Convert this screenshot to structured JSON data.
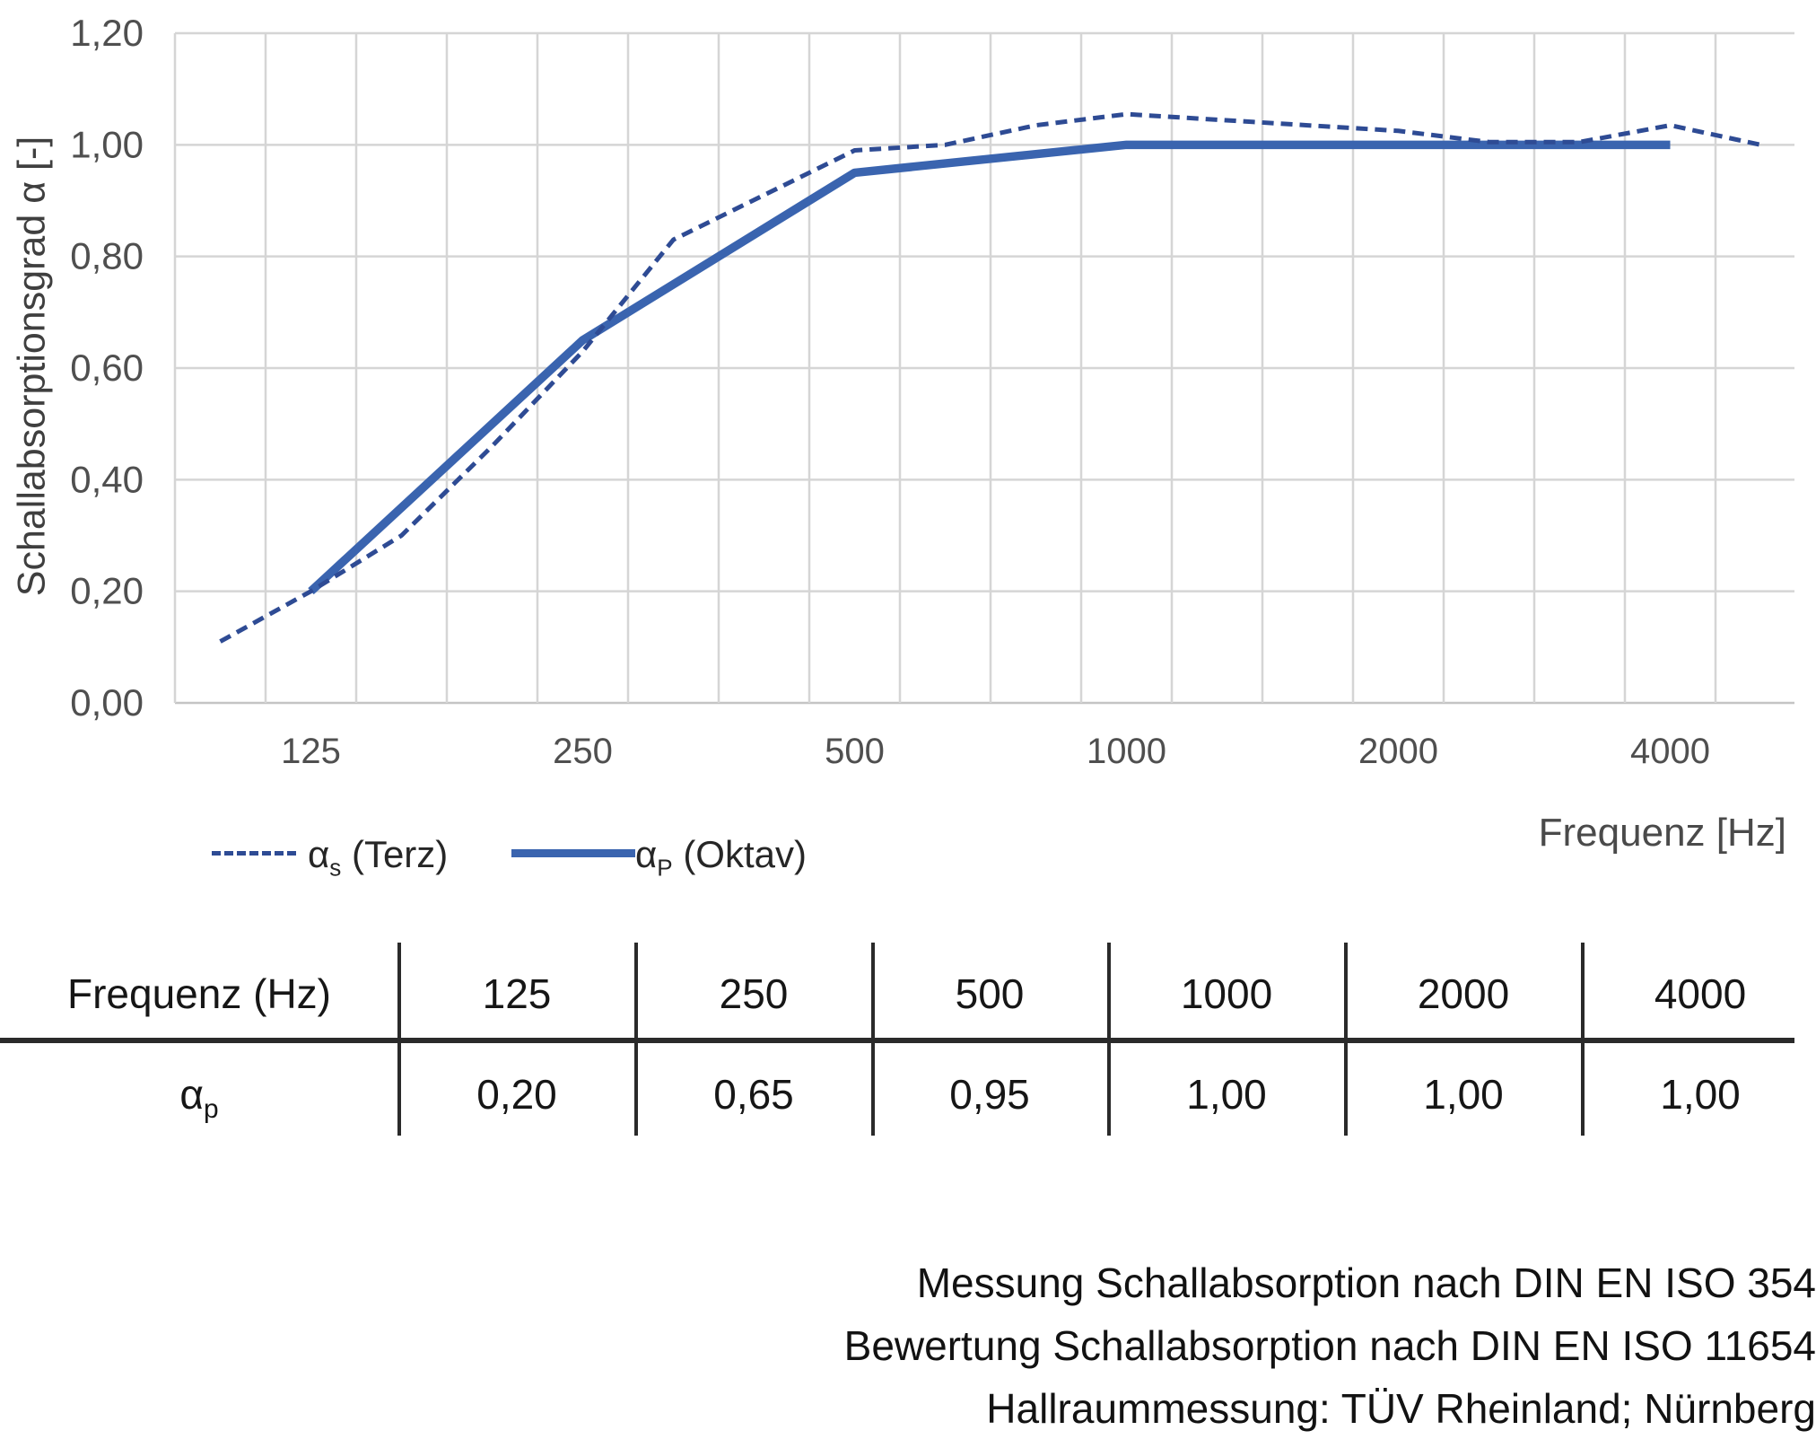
{
  "chart": {
    "y_axis": {
      "title": "Schallabsorptionsgrad α [-]",
      "tick_labels": [
        "1,20",
        "1,00",
        "0,80",
        "0,60",
        "0,40",
        "0,20",
        "0,00"
      ]
    },
    "x_axis": {
      "title": "Frequenz [Hz]",
      "tick_labels": [
        "125",
        "250",
        "500",
        "1000",
        "2000",
        "4000"
      ]
    },
    "legend": {
      "terz": {
        "symbol": "dashed-line",
        "base": "α",
        "sub": "s",
        "rest": " (Terz)"
      },
      "oktav": {
        "symbol": "solid-line",
        "base": "α",
        "sub": "P",
        "rest": " (Oktav)"
      }
    },
    "colors": {
      "terz_line": "#2E4B94",
      "oktav_line": "#3A64AF",
      "gridline": "#D5D5D5",
      "axis_line": "#C4C4C4",
      "tick_text": "#4F4F4F",
      "title_text": "#3F3F3F"
    }
  },
  "chart_data": {
    "type": "line",
    "xlabel": "Frequenz [Hz]",
    "ylabel": "Schallabsorptionsgrad α [-]",
    "x_scale": "third-octave-bands",
    "categories": [
      100,
      125,
      160,
      200,
      250,
      315,
      400,
      500,
      630,
      800,
      1000,
      1250,
      1600,
      2000,
      2500,
      3150,
      4000,
      5000
    ],
    "ylim": [
      0,
      1.2
    ],
    "y_tick_step": 0.2,
    "grid": true,
    "legend_position": "bottom-left",
    "series": [
      {
        "name": "αs (Terz)",
        "style": "dashed",
        "color": "#2E4B94",
        "x": [
          100,
          125,
          160,
          200,
          250,
          315,
          400,
          500,
          630,
          800,
          1000,
          1250,
          1600,
          2000,
          2500,
          3150,
          4000,
          5000
        ],
        "values": [
          0.11,
          0.2,
          0.3,
          0.46,
          0.63,
          0.83,
          0.91,
          0.99,
          1.0,
          1.035,
          1.055,
          1.045,
          1.035,
          1.025,
          1.005,
          1.005,
          1.035,
          1.0
        ]
      },
      {
        "name": "αP (Oktav)",
        "style": "solid",
        "color": "#3A64AF",
        "x": [
          125,
          250,
          500,
          1000,
          2000,
          4000
        ],
        "values": [
          0.2,
          0.65,
          0.95,
          1.0,
          1.0,
          1.0
        ]
      }
    ]
  },
  "table": {
    "header_label": "Frequenz (Hz)",
    "frequencies": [
      "125",
      "250",
      "500",
      "1000",
      "2000",
      "4000"
    ],
    "row_label_base": "α",
    "row_label_sub": "p",
    "values": [
      "0,20",
      "0,65",
      "0,95",
      "1,00",
      "1,00",
      "1,00"
    ]
  },
  "footer": {
    "lines": [
      "Messung Schallabsorption nach DIN EN ISO 354",
      "Bewertung Schallabsorption nach DIN EN ISO 11654",
      "Hallraummessung: TÜV Rheinland; Nürnberg"
    ]
  }
}
